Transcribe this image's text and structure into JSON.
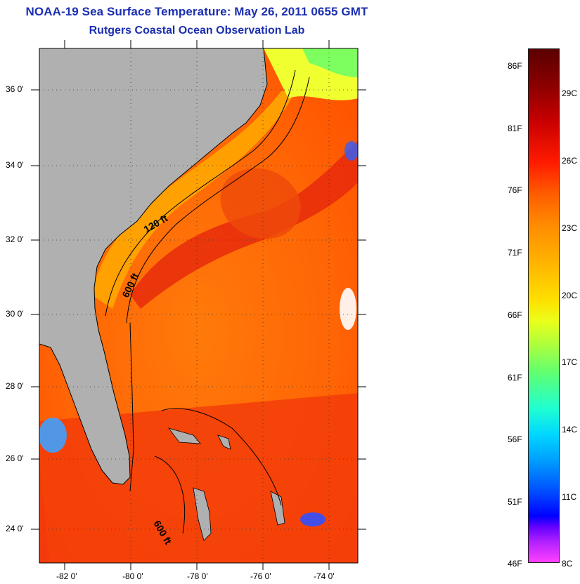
{
  "header": {
    "title": "NOAA-19 Sea Surface Temperature:  May 26, 2011 0655 GMT",
    "subtitle": "Rutgers Coastal Ocean Observation Lab"
  },
  "map": {
    "lat_labels": [
      "36 0'",
      "34 0'",
      "32 0'",
      "30 0'",
      "28 0'",
      "26 0'",
      "24 0'"
    ],
    "lon_labels": [
      "-82 0'",
      "-80 0'",
      "-78 0'",
      "-76 0'",
      "-74 0'"
    ],
    "contour_labels": {
      "shelf_120": "120 ft",
      "shelf_600": "600 ft",
      "bahamas_600": "600 ft"
    },
    "colors": {
      "land": "#b0b0b0",
      "warm": "#ff6a00",
      "hot": "#e82a0c",
      "cool": "#ffc000"
    }
  },
  "colorbar": {
    "fahrenheit_labels": [
      "86F",
      "81F",
      "76F",
      "71F",
      "66F",
      "61F",
      "56F",
      "51F",
      "46F"
    ],
    "celsius_labels": [
      "29C",
      "26C",
      "23C",
      "20C",
      "17C",
      "14C",
      "11C",
      "8C"
    ]
  }
}
